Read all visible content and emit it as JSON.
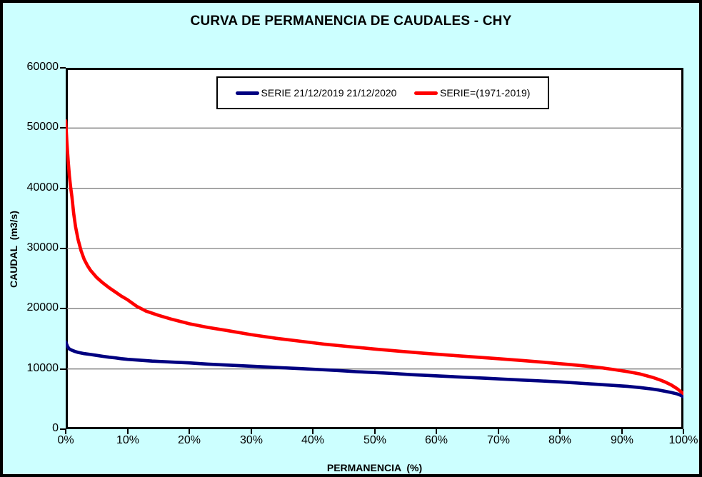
{
  "title": "CURVA DE PERMANENCIA DE CAUDALES - CHY",
  "colors": {
    "background": "#CCFFFF",
    "plot_background": "#FFFFFF",
    "plot_border": "#000000",
    "gridline": "#7F7F7F",
    "series_blue": "#000080",
    "series_red": "#FF0000"
  },
  "legend": {
    "items": [
      {
        "label": "SERIE 21/12/2019 21/12/2020",
        "color": "#000080"
      },
      {
        "label": "SERIE=(1971-2019)",
        "color": "#FF0000"
      }
    ]
  },
  "axes": {
    "x": {
      "title": "PERMANENCIA  (%)",
      "tick_values": [
        0,
        10,
        20,
        30,
        40,
        50,
        60,
        70,
        80,
        90,
        100
      ],
      "tick_labels": [
        "0%",
        "10%",
        "20%",
        "30%",
        "40%",
        "50%",
        "60%",
        "70%",
        "80%",
        "90%",
        "100%"
      ]
    },
    "y": {
      "title": "CAUDAL  (m3/s)",
      "tick_values": [
        0,
        10000,
        20000,
        30000,
        40000,
        50000,
        60000
      ],
      "tick_labels": [
        "0",
        "10000",
        "20000",
        "30000",
        "40000",
        "50000",
        "60000"
      ]
    }
  },
  "chart_data": {
    "type": "line",
    "title": "CURVA DE PERMANENCIA DE CAUDALES - CHY",
    "xlabel": "PERMANENCIA (%)",
    "ylabel": "CAUDAL (m3/s)",
    "xlim": [
      0,
      100
    ],
    "ylim": [
      0,
      60000
    ],
    "grid": true,
    "legend_position": "top-center",
    "series": [
      {
        "name": "SERIE 21/12/2019 21/12/2020",
        "color": "#000080",
        "points": [
          [
            0,
            14500
          ],
          [
            0.3,
            13700
          ],
          [
            0.6,
            13300
          ],
          [
            1,
            13100
          ],
          [
            1.5,
            12900
          ],
          [
            2,
            12750
          ],
          [
            3,
            12550
          ],
          [
            4,
            12400
          ],
          [
            5,
            12250
          ],
          [
            6,
            12100
          ],
          [
            7,
            11950
          ],
          [
            8,
            11850
          ],
          [
            9,
            11700
          ],
          [
            10,
            11600
          ],
          [
            12,
            11450
          ],
          [
            14,
            11300
          ],
          [
            16,
            11200
          ],
          [
            18,
            11100
          ],
          [
            20,
            11000
          ],
          [
            23,
            10800
          ],
          [
            26,
            10650
          ],
          [
            29,
            10500
          ],
          [
            32,
            10350
          ],
          [
            35,
            10200
          ],
          [
            38,
            10050
          ],
          [
            41,
            9900
          ],
          [
            44,
            9750
          ],
          [
            47,
            9550
          ],
          [
            50,
            9400
          ],
          [
            53,
            9250
          ],
          [
            56,
            9050
          ],
          [
            59,
            8900
          ],
          [
            62,
            8750
          ],
          [
            65,
            8600
          ],
          [
            68,
            8450
          ],
          [
            71,
            8300
          ],
          [
            74,
            8150
          ],
          [
            77,
            8000
          ],
          [
            80,
            7850
          ],
          [
            83,
            7650
          ],
          [
            86,
            7450
          ],
          [
            89,
            7250
          ],
          [
            91,
            7100
          ],
          [
            93,
            6900
          ],
          [
            95,
            6650
          ],
          [
            96,
            6500
          ],
          [
            97,
            6300
          ],
          [
            98,
            6100
          ],
          [
            99,
            5850
          ],
          [
            99.5,
            5650
          ],
          [
            100,
            5400
          ]
        ]
      },
      {
        "name": "SERIE=(1971-2019)",
        "color": "#FF0000",
        "points": [
          [
            0,
            51200
          ],
          [
            0.2,
            47500
          ],
          [
            0.4,
            44500
          ],
          [
            0.6,
            42000
          ],
          [
            0.8,
            40200
          ],
          [
            1,
            38600
          ],
          [
            1.3,
            35800
          ],
          [
            1.6,
            33600
          ],
          [
            2,
            31500
          ],
          [
            2.5,
            29600
          ],
          [
            3,
            28200
          ],
          [
            3.5,
            27200
          ],
          [
            4,
            26400
          ],
          [
            5,
            25200
          ],
          [
            6,
            24300
          ],
          [
            7,
            23500
          ],
          [
            8,
            22800
          ],
          [
            9,
            22100
          ],
          [
            10,
            21500
          ],
          [
            11.5,
            20400
          ],
          [
            13,
            19600
          ],
          [
            15,
            18900
          ],
          [
            17,
            18300
          ],
          [
            20,
            17500
          ],
          [
            23,
            16900
          ],
          [
            26,
            16400
          ],
          [
            30,
            15700
          ],
          [
            34,
            15100
          ],
          [
            38,
            14600
          ],
          [
            42,
            14100
          ],
          [
            46,
            13700
          ],
          [
            50,
            13300
          ],
          [
            54,
            12950
          ],
          [
            58,
            12600
          ],
          [
            62,
            12300
          ],
          [
            66,
            12000
          ],
          [
            70,
            11700
          ],
          [
            74,
            11400
          ],
          [
            78,
            11050
          ],
          [
            82,
            10700
          ],
          [
            85,
            10400
          ],
          [
            87,
            10150
          ],
          [
            89,
            9850
          ],
          [
            91,
            9550
          ],
          [
            93,
            9150
          ],
          [
            95,
            8600
          ],
          [
            96,
            8250
          ],
          [
            97,
            7850
          ],
          [
            98,
            7350
          ],
          [
            99,
            6700
          ],
          [
            99.5,
            6300
          ],
          [
            100,
            5900
          ]
        ]
      }
    ]
  }
}
